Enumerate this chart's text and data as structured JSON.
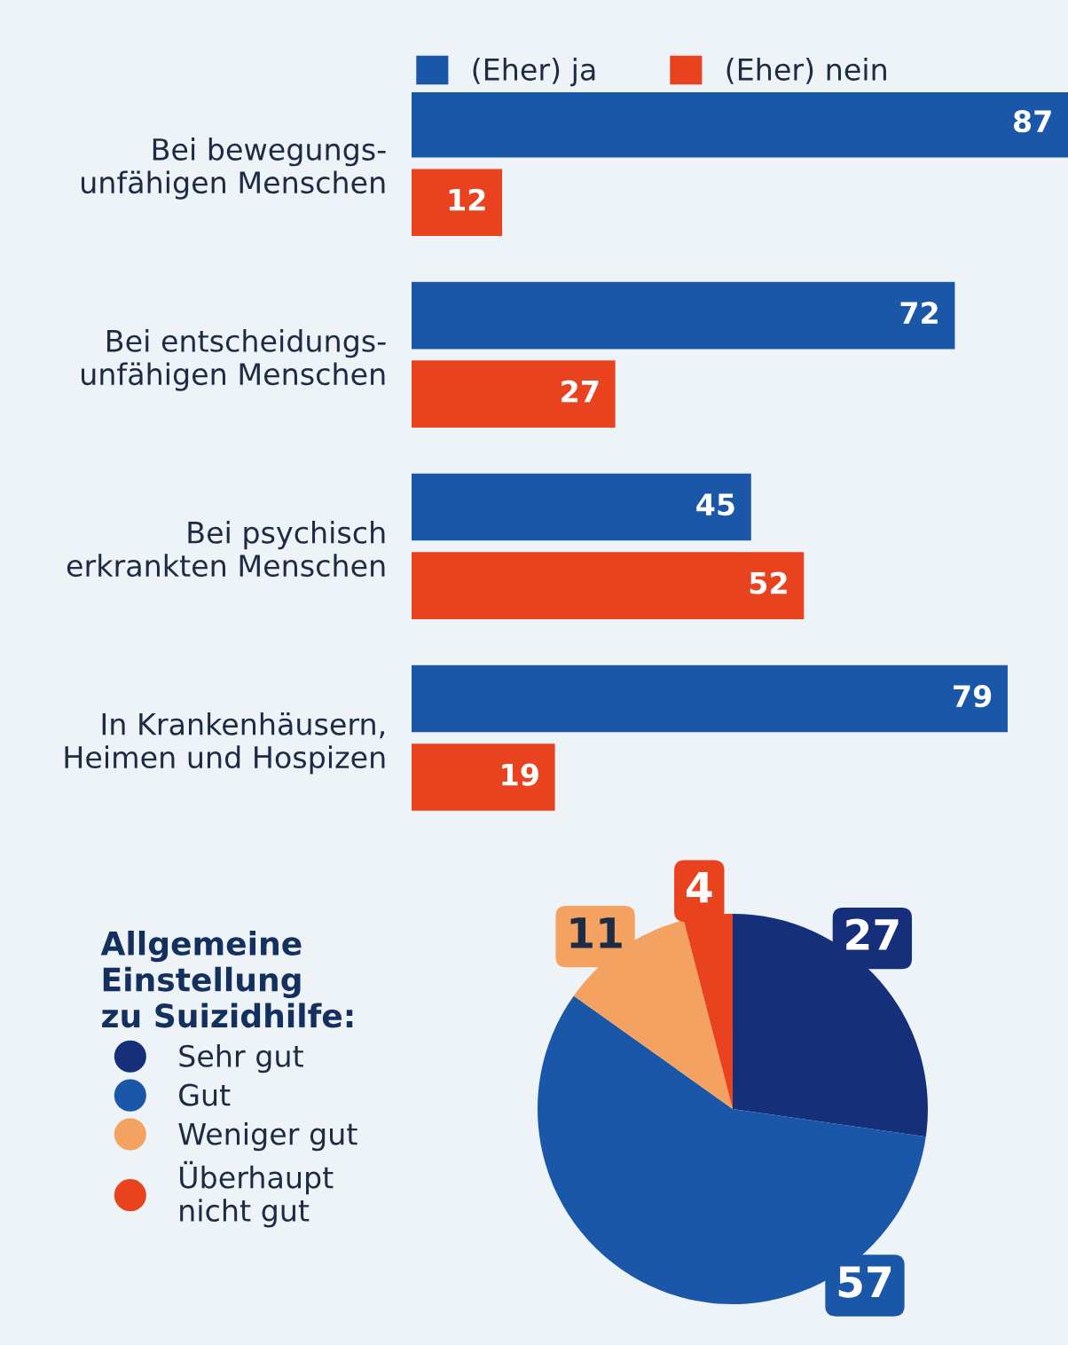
{
  "chart_data": [
    {
      "type": "bar",
      "orientation": "horizontal",
      "categories": [
        "Bei bewegungs-\nunfähigen Menschen",
        "Bei entscheidungs-\nunfähigen Menschen",
        "Bei psychisch\nerkrankten Menschen",
        "In Krankenhäusern,\nHeimen und Hospizen"
      ],
      "series": [
        {
          "name": "(Eher) ja",
          "color": "#1a57a8",
          "values": [
            87,
            72,
            45,
            79
          ]
        },
        {
          "name": "(Eher) nein",
          "color": "#e8431e",
          "values": [
            12,
            27,
            52,
            19
          ]
        }
      ],
      "data_labels": true,
      "legend": "top",
      "grid": false
    },
    {
      "type": "pie",
      "legend_title": "Allgemeine\nEinstellung\nzu Suizidhilfe:",
      "categories": [
        "Sehr gut",
        "Gut",
        "Weniger gut",
        "Überhaupt\nnicht gut"
      ],
      "values": [
        27,
        57,
        11,
        4
      ],
      "colors": [
        "#162f7a",
        "#1a57a8",
        "#f3a261",
        "#e8431e"
      ],
      "data_labels": true,
      "legend": "left"
    }
  ]
}
